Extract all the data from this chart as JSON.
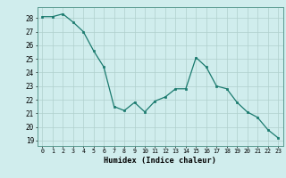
{
  "x": [
    0,
    1,
    2,
    3,
    4,
    5,
    6,
    7,
    8,
    9,
    10,
    11,
    12,
    13,
    14,
    15,
    16,
    17,
    18,
    19,
    20,
    21,
    22,
    23
  ],
  "y": [
    28.1,
    28.1,
    28.3,
    27.7,
    27.0,
    25.6,
    24.4,
    21.5,
    21.2,
    21.8,
    21.1,
    21.9,
    22.2,
    22.8,
    22.8,
    25.1,
    24.4,
    23.0,
    22.8,
    21.8,
    21.1,
    20.7,
    19.8,
    19.2
  ],
  "line_color": "#1a7a6e",
  "marker_color": "#1a7a6e",
  "bg_color": "#d0eded",
  "grid_color": "#b0d0cc",
  "xlabel": "Humidex (Indice chaleur)",
  "ylabel_ticks": [
    19,
    20,
    21,
    22,
    23,
    24,
    25,
    26,
    27,
    28
  ],
  "ylim": [
    18.6,
    28.8
  ],
  "xlim": [
    -0.5,
    23.5
  ]
}
